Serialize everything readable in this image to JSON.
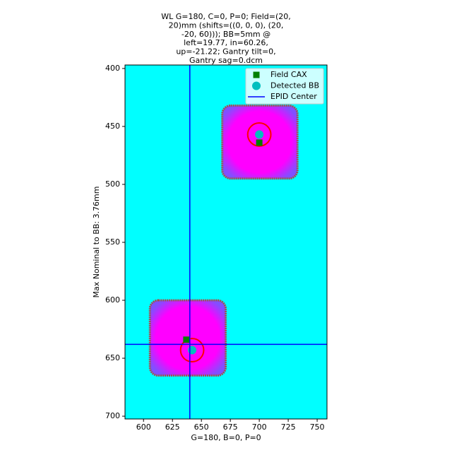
{
  "chart_data": {
    "type": "scatter",
    "title": [
      "WL G=180, C=0, P=0; Field=(20,",
      "20)mm (shifts=((0, 0, 0), (20,",
      "-20, 60))); BB=5mm @",
      "left=19.77, in=60.26,",
      "up=-21.22; Gantry tilt=0,",
      "Gantry sag=0.dcm"
    ],
    "x_label": "G=180, B=0, P=0",
    "y_label": "Max Nominal to BB: 3.76mm",
    "xlim": [
      584,
      758.5
    ],
    "xticks": [
      600,
      625,
      650,
      675,
      700,
      725,
      750
    ],
    "ylim": [
      702.4,
      397
    ],
    "yticks": [
      400,
      450,
      500,
      550,
      600,
      650,
      700
    ],
    "background": "#00ffff",
    "fields": [
      {
        "x": [
          668,
          733
        ],
        "y": [
          432,
          495
        ],
        "color": "#ff00ff"
      },
      {
        "x": [
          605.5,
          671
        ],
        "y": [
          600,
          665
        ],
        "color": "#ff00ff"
      }
    ],
    "bb_circle_radius": 10,
    "legend": "upper right",
    "series": [
      {
        "name": "Field CAX",
        "color": "#008000",
        "marker": "square",
        "x": [
          700,
          637
        ],
        "y": [
          464,
          634
        ]
      },
      {
        "name": "Detected BB",
        "color": "#00bfbf",
        "marker": "circle",
        "x": [
          700,
          642
        ],
        "y": [
          457,
          643
        ]
      },
      {
        "name": "EPID Center",
        "color": "#0000ff",
        "marker": "line",
        "x": [
          640
        ],
        "y": [
          638
        ]
      }
    ]
  }
}
